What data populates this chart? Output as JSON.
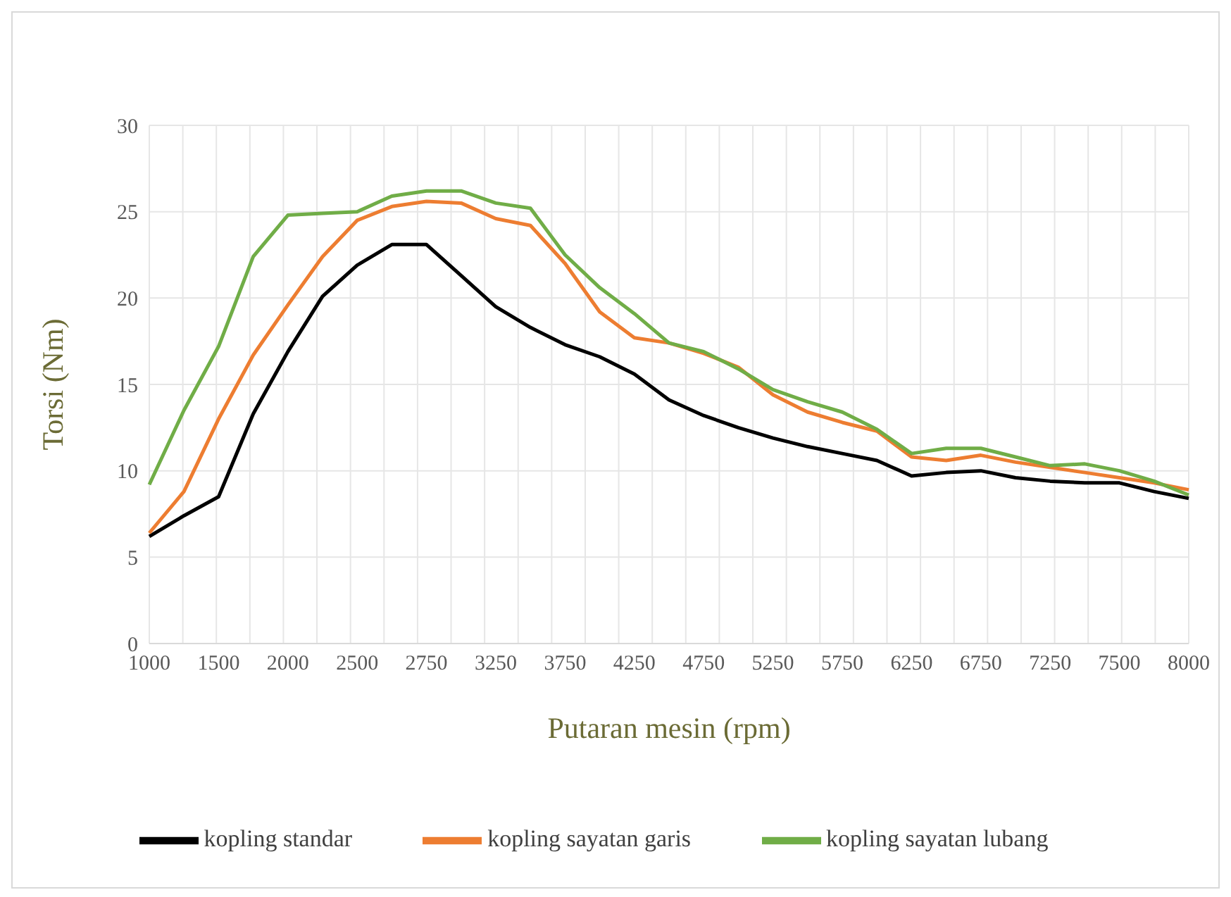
{
  "chart_data": {
    "type": "line",
    "xlabel": "Putaran mesin (rpm)",
    "ylabel": "Torsi (Nm)",
    "categories": [
      "1000",
      null,
      "1500",
      null,
      "2000",
      null,
      "2500",
      null,
      "2750",
      null,
      "3250",
      null,
      "3750",
      null,
      "4250",
      null,
      "4750",
      null,
      "5250",
      null,
      "5750",
      null,
      "6250",
      null,
      "6750",
      null,
      "7250",
      null,
      "7500",
      null,
      "8000"
    ],
    "ylim": [
      0,
      30
    ],
    "yticks": [
      0,
      5,
      10,
      15,
      20,
      25,
      30
    ],
    "grid": true,
    "legend": "bottom",
    "marker": "none",
    "line_style": "solid",
    "series": [
      {
        "name": "kopling standar",
        "color": "#000000",
        "values": [
          6.2,
          7.4,
          8.5,
          13.3,
          16.9,
          20.1,
          21.9,
          23.1,
          23.1,
          21.3,
          19.5,
          18.3,
          17.3,
          16.6,
          15.6,
          14.1,
          13.2,
          12.5,
          11.9,
          11.4,
          11.0,
          10.6,
          9.7,
          9.9,
          10.0,
          9.6,
          9.4,
          9.3,
          9.3,
          8.8,
          8.4
        ]
      },
      {
        "name": "kopling sayatan garis",
        "color": "#ed7d31",
        "values": [
          6.4,
          8.8,
          13.0,
          16.7,
          19.6,
          22.4,
          24.5,
          25.3,
          25.6,
          25.5,
          24.6,
          24.2,
          22.0,
          19.2,
          17.7,
          17.4,
          16.8,
          16.0,
          14.4,
          13.4,
          12.8,
          12.3,
          10.8,
          10.6,
          10.9,
          10.5,
          10.2,
          9.9,
          9.6,
          9.3,
          8.9
        ]
      },
      {
        "name": "kopling sayatan lubang",
        "color": "#70ad47",
        "values": [
          9.2,
          13.5,
          17.2,
          22.4,
          24.8,
          24.9,
          25.0,
          25.9,
          26.2,
          26.2,
          25.5,
          25.2,
          22.5,
          20.6,
          19.1,
          17.4,
          16.9,
          15.9,
          14.7,
          14.0,
          13.4,
          12.4,
          11.0,
          11.3,
          11.3,
          10.8,
          10.3,
          10.4,
          10.0,
          9.4,
          8.6
        ]
      }
    ]
  }
}
